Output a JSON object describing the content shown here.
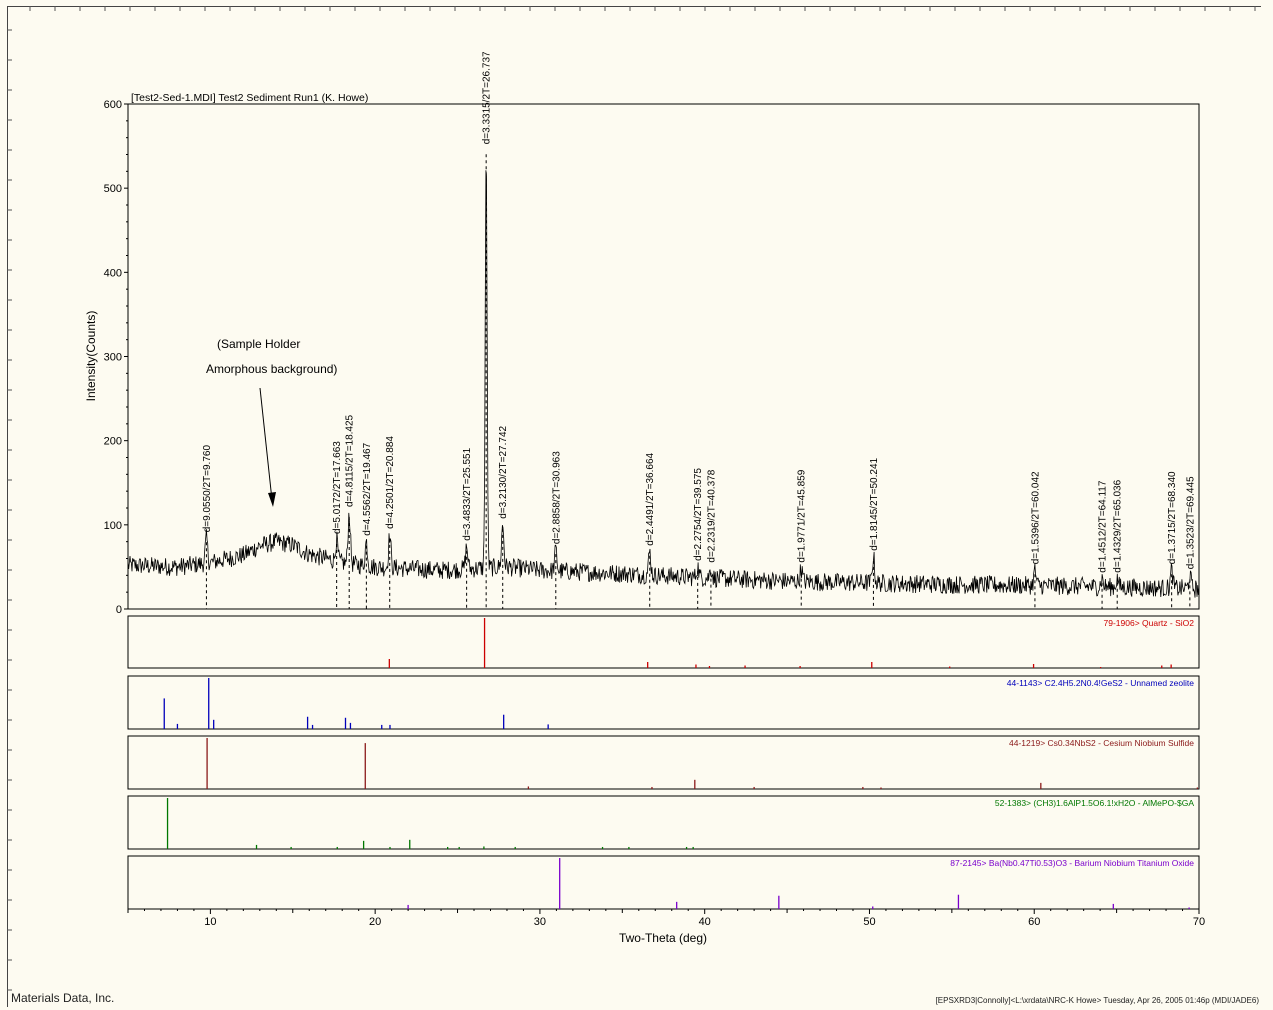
{
  "title": "[Test2-Sed-1.MDI] Test2 Sediment Run1 (K. Howe)",
  "footer_left": "Materials Data, Inc.",
  "footer_right": "[EPSXRD3|Connolly]<L:\\xrdata\\NRC-K Howe> Tuesday, Apr 26, 2005 01:46p (MDI/JADE6)",
  "annotation": {
    "line1": "(Sample Holder",
    "line2": "Amorphous background)"
  },
  "colors": {
    "pattern": "#000000",
    "quartz": "#cc0000",
    "zeolite": "#0000bb",
    "sulfide": "#8b1a1a",
    "alpo": "#007700",
    "barium": "#7a00cc",
    "background": "#fdfbf1"
  },
  "chart_data": {
    "type": "line",
    "title": "[Test2-Sed-1.MDI] Test2 Sediment Run1 (K. Howe)",
    "xlabel": "Two-Theta (deg)",
    "ylabel": "Intensity(Counts)",
    "xlim": [
      5,
      70
    ],
    "ylim": [
      0,
      600
    ],
    "x_ticks": [
      10,
      20,
      30,
      40,
      50,
      60,
      70
    ],
    "y_ticks": [
      0,
      100,
      200,
      300,
      400,
      500,
      600
    ],
    "background_hump": {
      "center": 14.0,
      "width": 2.8,
      "height": 40
    },
    "baseline": [
      [
        5,
        52
      ],
      [
        8,
        50
      ],
      [
        10,
        55
      ],
      [
        12,
        64
      ],
      [
        13,
        75
      ],
      [
        14,
        80
      ],
      [
        15,
        76
      ],
      [
        16,
        65
      ],
      [
        18,
        55
      ],
      [
        20,
        50
      ],
      [
        24,
        46
      ],
      [
        28,
        50
      ],
      [
        30,
        46
      ],
      [
        35,
        42
      ],
      [
        40,
        37
      ],
      [
        45,
        33
      ],
      [
        50,
        31
      ],
      [
        55,
        29
      ],
      [
        60,
        28
      ],
      [
        65,
        26
      ],
      [
        70,
        24
      ]
    ],
    "peaks": [
      {
        "two_theta": 9.76,
        "d": 9.055,
        "label": "d=9.0550/2T=9.760",
        "intensity": 84
      },
      {
        "two_theta": 17.663,
        "d": 5.0172,
        "label": "d=5.0172/2T=17.663",
        "intensity": 82
      },
      {
        "two_theta": 18.425,
        "d": 4.8115,
        "label": "d=4.8115/2T=18.425",
        "intensity": 114
      },
      {
        "two_theta": 19.467,
        "d": 4.5562,
        "label": "d=4.5562/2T=19.467",
        "intensity": 80
      },
      {
        "two_theta": 20.884,
        "d": 4.2501,
        "label": "d=4.2501/2T=20.884",
        "intensity": 88
      },
      {
        "two_theta": 25.551,
        "d": 3.4833,
        "label": "d=3.4833/2T=25.551",
        "intensity": 74
      },
      {
        "two_theta": 26.737,
        "d": 3.3315,
        "label": "d=3.3315/2T=26.737",
        "intensity": 545
      },
      {
        "two_theta": 27.742,
        "d": 3.213,
        "label": "d=3.2130/2T=27.742",
        "intensity": 100
      },
      {
        "two_theta": 30.963,
        "d": 2.8858,
        "label": "d=2.8858/2T=30.963",
        "intensity": 70
      },
      {
        "two_theta": 36.664,
        "d": 2.4491,
        "label": "d=2.4491/2T=36.664",
        "intensity": 68
      },
      {
        "two_theta": 39.575,
        "d": 2.2754,
        "label": "d=2.2754/2T=39.575",
        "intensity": 50
      },
      {
        "two_theta": 40.378,
        "d": 2.2319,
        "label": "d=2.2319/2T=40.378",
        "intensity": 48
      },
      {
        "two_theta": 45.859,
        "d": 1.9771,
        "label": "d=1.9771/2T=45.859",
        "intensity": 48
      },
      {
        "two_theta": 50.241,
        "d": 1.8145,
        "label": "d=1.8145/2T=50.241",
        "intensity": 62
      },
      {
        "two_theta": 60.042,
        "d": 1.5396,
        "label": "d=1.5396/2T=60.042",
        "intensity": 46
      },
      {
        "two_theta": 64.117,
        "d": 1.4512,
        "label": "d=1.4512/2T=64.117",
        "intensity": 36
      },
      {
        "two_theta": 65.036,
        "d": 1.4329,
        "label": "d=1.4329/2T=65.036",
        "intensity": 36
      },
      {
        "two_theta": 68.34,
        "d": 1.3715,
        "label": "d=1.3715/2T=68.340",
        "intensity": 46
      },
      {
        "two_theta": 69.445,
        "d": 1.3523,
        "label": "d=1.3523/2T=69.445",
        "intensity": 40
      }
    ],
    "reference_patterns": [
      {
        "name": "79-1906> Quartz - SiO2",
        "color": "#cc0000",
        "sticks": [
          [
            20.86,
            18
          ],
          [
            26.64,
            100
          ],
          [
            36.54,
            12
          ],
          [
            39.47,
            7
          ],
          [
            40.29,
            4
          ],
          [
            42.45,
            5
          ],
          [
            45.79,
            4
          ],
          [
            50.14,
            12
          ],
          [
            54.87,
            3
          ],
          [
            59.96,
            8
          ],
          [
            64.03,
            2
          ],
          [
            67.74,
            5
          ],
          [
            68.31,
            7
          ]
        ]
      },
      {
        "name": "44-1143> C2.4H5.2N0.4!GeS2 - Unnamed zeolite",
        "color": "#0000bb",
        "sticks": [
          [
            7.2,
            60
          ],
          [
            8.0,
            10
          ],
          [
            9.9,
            100
          ],
          [
            10.2,
            18
          ],
          [
            15.9,
            24
          ],
          [
            16.2,
            8
          ],
          [
            18.2,
            22
          ],
          [
            18.5,
            12
          ],
          [
            20.4,
            8
          ],
          [
            20.9,
            8
          ],
          [
            27.8,
            28
          ],
          [
            30.5,
            9
          ]
        ]
      },
      {
        "name": "44-1219> Cs0.34NbS2 - Cesium Niobium Sulfide",
        "color": "#8b1a1a",
        "sticks": [
          [
            9.8,
            100
          ],
          [
            19.4,
            90
          ],
          [
            29.3,
            5
          ],
          [
            36.8,
            4
          ],
          [
            39.4,
            18
          ],
          [
            43.0,
            4
          ],
          [
            49.6,
            4
          ],
          [
            50.7,
            3
          ],
          [
            60.4,
            12
          ],
          [
            69.9,
            3
          ]
        ]
      },
      {
        "name": "52-1383> (CH3)1.6AlP1.5O6.1!xH2O - AlMePO-$GA",
        "color": "#007700",
        "sticks": [
          [
            7.4,
            100
          ],
          [
            12.8,
            8
          ],
          [
            14.9,
            4
          ],
          [
            17.7,
            4
          ],
          [
            19.3,
            16
          ],
          [
            20.9,
            4
          ],
          [
            22.1,
            18
          ],
          [
            24.4,
            4
          ],
          [
            25.1,
            4
          ],
          [
            26.6,
            5
          ],
          [
            28.5,
            4
          ],
          [
            33.8,
            4
          ],
          [
            35.4,
            4
          ],
          [
            38.9,
            4
          ],
          [
            39.3,
            4
          ]
        ]
      },
      {
        "name": "87-2145> Ba(Nb0.47Ti0.53)O3 - Barium Niobium Titanium Oxide",
        "color": "#7a00cc",
        "sticks": [
          [
            22.0,
            8
          ],
          [
            31.2,
            100
          ],
          [
            38.3,
            14
          ],
          [
            44.5,
            26
          ],
          [
            50.2,
            5
          ],
          [
            55.4,
            28
          ],
          [
            64.8,
            10
          ],
          [
            69.4,
            3
          ]
        ]
      }
    ]
  }
}
